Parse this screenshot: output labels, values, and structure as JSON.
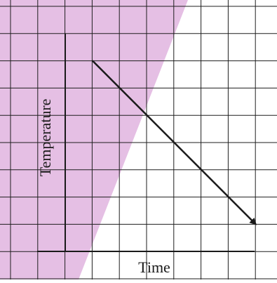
{
  "chart_data": {
    "type": "line",
    "title": "",
    "xlabel": "Time",
    "ylabel": "Temperature",
    "x_tick_labels": [],
    "y_tick_labels": [],
    "grid": true,
    "legend": "none",
    "colors": {
      "band": "#e0b4df",
      "grid": "#1e1e1e",
      "line": "#1a1a1a",
      "axis": "#1a1a1a",
      "background": "#ffffff"
    },
    "series": [
      {
        "style": "arrow",
        "x": [
          1,
          7
        ],
        "y": [
          7,
          1
        ]
      }
    ]
  }
}
